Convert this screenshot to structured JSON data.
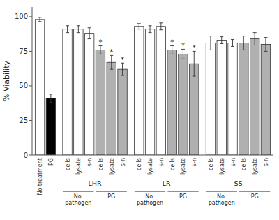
{
  "chart_data": {
    "type": "bar",
    "ylabel": "% Viability",
    "categories": [
      "No treatment",
      "PG",
      "cells",
      "lysate",
      "s-n",
      "cells",
      "lysate",
      "s-n",
      "cells",
      "lysate",
      "s-n",
      "cells",
      "lysate",
      "s-n",
      "cells",
      "lysate",
      "s-n",
      "cells",
      "lysate",
      "s-n"
    ],
    "values": [
      98,
      41,
      91,
      91,
      88,
      76,
      67,
      62,
      93,
      91,
      93,
      76,
      73,
      66,
      81,
      83,
      81,
      81,
      84,
      80
    ],
    "error": [
      1.5,
      3.0,
      2.5,
      2.5,
      4.0,
      3.0,
      5.0,
      4.5,
      2.0,
      2.5,
      2.5,
      3.0,
      3.5,
      9.0,
      5.0,
      2.5,
      2.5,
      5.0,
      4.5,
      5.0
    ],
    "colors": [
      "#ffffff",
      "#000000",
      "#ffffff",
      "#ffffff",
      "#ffffff",
      "#b0b0b0",
      "#b0b0b0",
      "#b0b0b0",
      "#ffffff",
      "#ffffff",
      "#ffffff",
      "#b0b0b0",
      "#b0b0b0",
      "#b0b0b0",
      "#ffffff",
      "#ffffff",
      "#ffffff",
      "#b0b0b0",
      "#b0b0b0",
      "#b0b0b0"
    ],
    "bar_annotations": [
      null,
      null,
      null,
      null,
      null,
      "*",
      "*",
      "*",
      null,
      null,
      null,
      "*",
      "*",
      "*",
      null,
      null,
      null,
      null,
      null,
      null
    ],
    "category_groups": [
      null,
      null,
      "LHR",
      "LHR",
      "LHR",
      "LHR",
      "LHR",
      "LHR",
      "LR",
      "LR",
      "LR",
      "LR",
      "LR",
      "LR",
      "SS",
      "SS",
      "SS",
      "SS",
      "SS",
      "SS"
    ],
    "category_subgroups": [
      null,
      null,
      "No pathogen",
      "No pathogen",
      "No pathogen",
      "PG",
      "PG",
      "PG",
      "No pathogen",
      "No pathogen",
      "No pathogen",
      "PG",
      "PG",
      "PG",
      "No pathogen",
      "No pathogen",
      "No pathogen",
      "PG",
      "PG",
      "PG"
    ],
    "ylim": [
      0,
      107
    ],
    "yticks": [
      0,
      25,
      50,
      75,
      100
    ],
    "grid": false
  }
}
